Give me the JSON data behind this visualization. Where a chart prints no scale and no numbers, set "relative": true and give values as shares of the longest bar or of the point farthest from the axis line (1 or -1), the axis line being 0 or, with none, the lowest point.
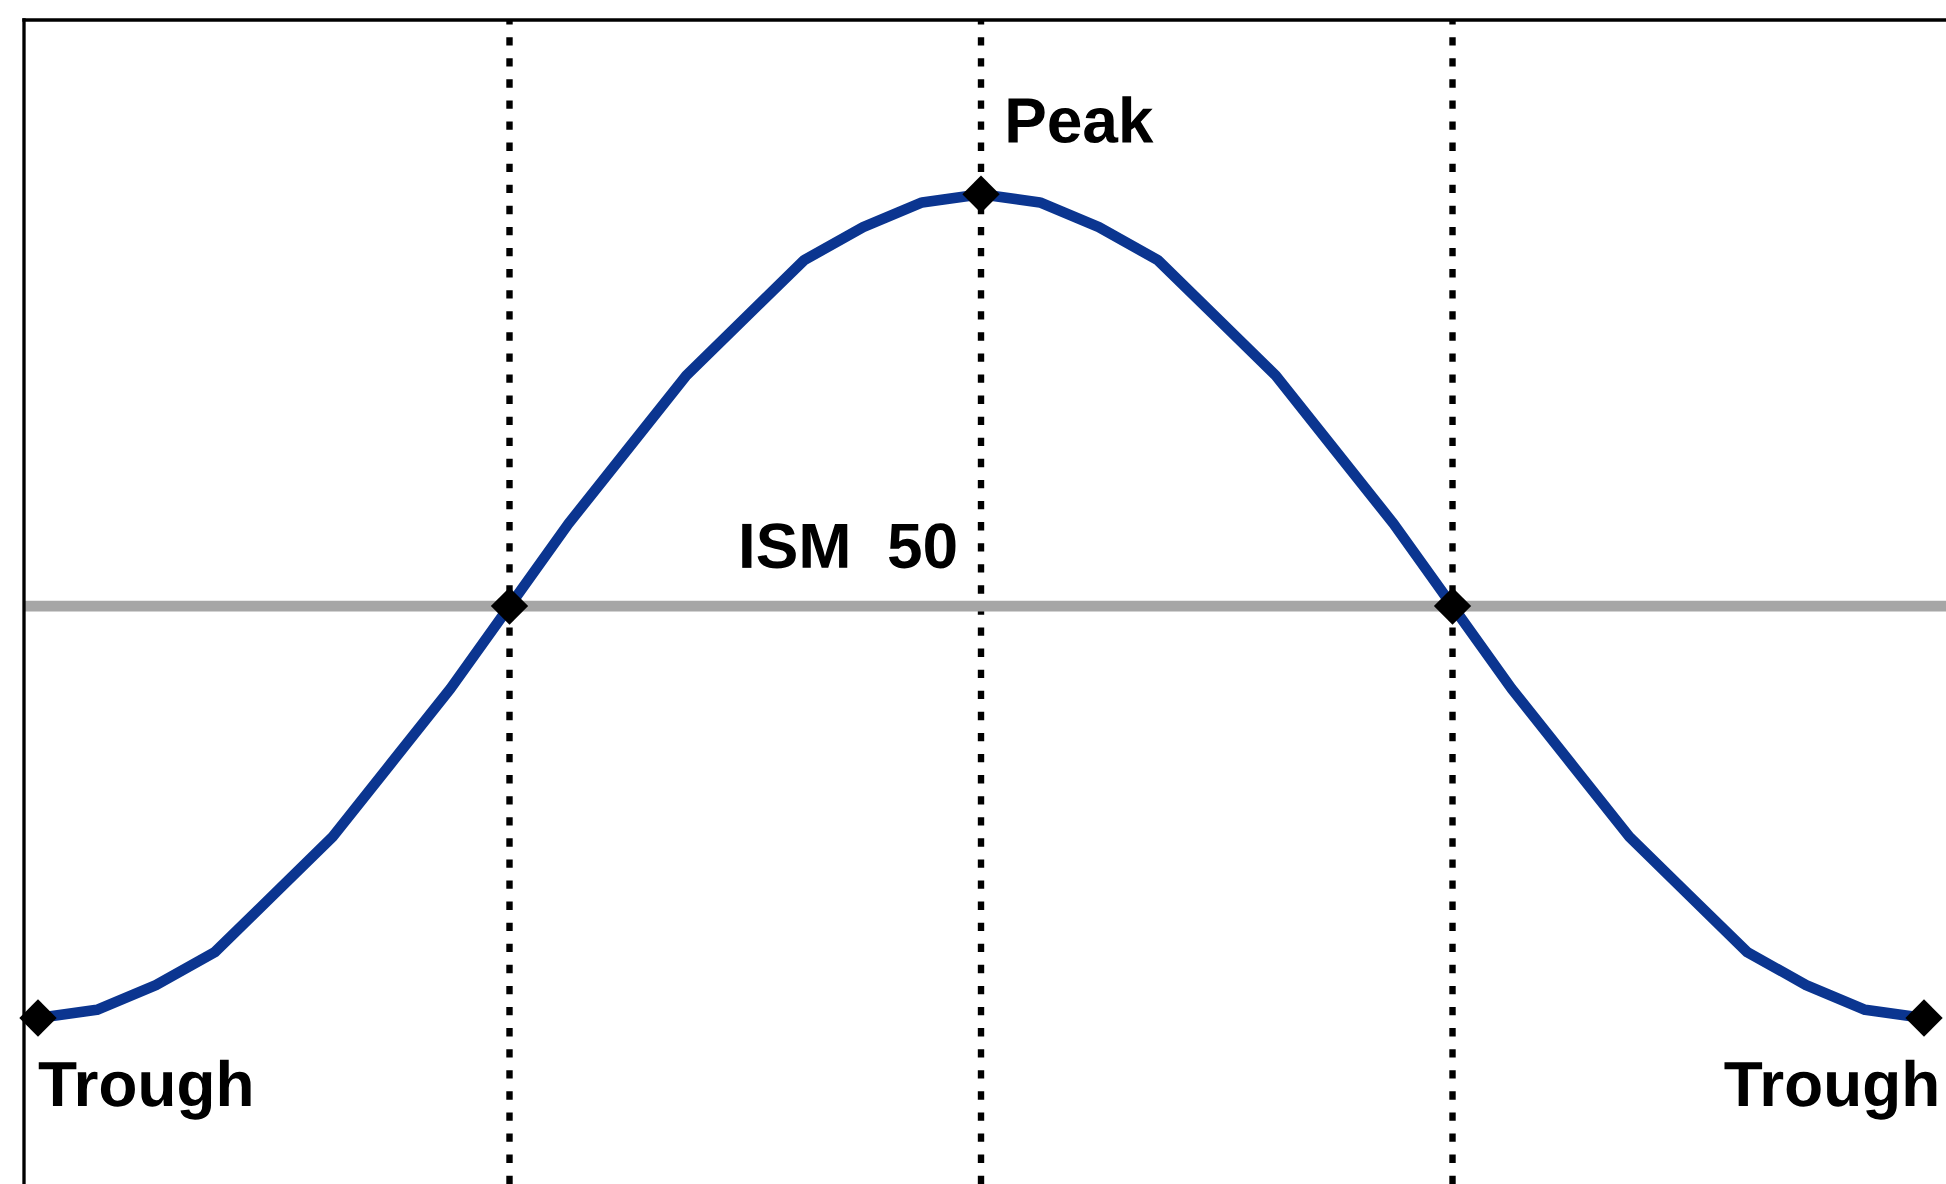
{
  "chart_data": {
    "type": "line",
    "relative": true,
    "grid": "x",
    "categories": [
      null,
      null,
      null,
      null,
      null,
      null,
      null,
      null,
      null,
      null,
      null,
      null,
      null,
      null,
      null,
      null,
      null,
      null,
      null,
      null,
      null,
      null,
      null,
      null,
      null,
      null,
      null,
      null,
      null,
      null,
      null,
      null,
      null
    ],
    "series": [
      {
        "color": "#0b3590",
        "line_style": "solid",
        "values": [
          0,
          0.01,
          0.04,
          0.08,
          0.15,
          0.22,
          0.31,
          0.4,
          0.5,
          0.6,
          0.69,
          0.78,
          0.85,
          0.92,
          0.96,
          0.99,
          1,
          0.99,
          0.96,
          0.92,
          0.85,
          0.78,
          0.69,
          0.6,
          0.5,
          0.4,
          0.31,
          0.22,
          0.15,
          0.08,
          0.04,
          0.01,
          0
        ]
      }
    ],
    "ref_lines": [
      {
        "axis": "y",
        "value": 0.5,
        "label": "ISM  50",
        "color": "#a6a6a6",
        "line_style": "solid"
      }
    ],
    "annotations": [
      "Trough",
      "Peak",
      "Trough"
    ]
  }
}
